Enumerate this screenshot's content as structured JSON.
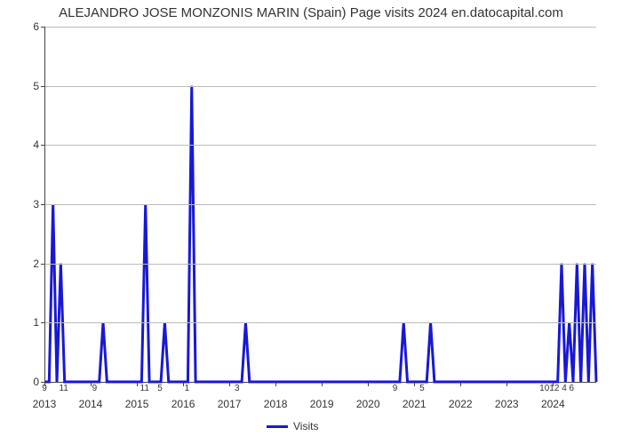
{
  "title": "ALEJANDRO JOSE MONZONIS MARIN (Spain) Page visits 2024 en.datocapital.com",
  "chart": {
    "type": "line",
    "background_color": "#ffffff",
    "grid_color": "#bbbbbb",
    "axis_color": "#444444",
    "text_color": "#333333",
    "title_fontsize": 15,
    "tick_fontsize": 12,
    "datalabel_fontsize": 10,
    "line_color": "#1818d6",
    "line_width": 3,
    "ylim": [
      0,
      6
    ],
    "ytick_step": 1,
    "x_label_step_months": 12,
    "x_start_year": 2013,
    "x_end_year": 2024,
    "legend_label": "Visits",
    "series": [
      {
        "month": 0,
        "value": 0,
        "data_label": "9"
      },
      {
        "month": 1,
        "value": 0
      },
      {
        "month": 2,
        "value": 3
      },
      {
        "month": 3,
        "value": 0
      },
      {
        "month": 4,
        "value": 2
      },
      {
        "month": 5,
        "value": 0,
        "data_label": "11"
      },
      {
        "month": 6,
        "value": 0
      },
      {
        "month": 7,
        "value": 0
      },
      {
        "month": 8,
        "value": 0
      },
      {
        "month": 9,
        "value": 0
      },
      {
        "month": 10,
        "value": 0
      },
      {
        "month": 11,
        "value": 0
      },
      {
        "month": 12,
        "value": 0
      },
      {
        "month": 13,
        "value": 0,
        "data_label": "9"
      },
      {
        "month": 14,
        "value": 0
      },
      {
        "month": 15,
        "value": 1
      },
      {
        "month": 16,
        "value": 0
      },
      {
        "month": 17,
        "value": 0
      },
      {
        "month": 18,
        "value": 0
      },
      {
        "month": 19,
        "value": 0
      },
      {
        "month": 20,
        "value": 0
      },
      {
        "month": 21,
        "value": 0
      },
      {
        "month": 22,
        "value": 0
      },
      {
        "month": 23,
        "value": 0
      },
      {
        "month": 24,
        "value": 0
      },
      {
        "month": 25,
        "value": 0
      },
      {
        "month": 26,
        "value": 3,
        "data_label": "11"
      },
      {
        "month": 27,
        "value": 0
      },
      {
        "month": 28,
        "value": 0
      },
      {
        "month": 29,
        "value": 0
      },
      {
        "month": 30,
        "value": 0,
        "data_label": "5"
      },
      {
        "month": 31,
        "value": 1
      },
      {
        "month": 32,
        "value": 0
      },
      {
        "month": 33,
        "value": 0
      },
      {
        "month": 34,
        "value": 0
      },
      {
        "month": 35,
        "value": 0
      },
      {
        "month": 36,
        "value": 0
      },
      {
        "month": 37,
        "value": 0,
        "data_label": "1"
      },
      {
        "month": 38,
        "value": 5
      },
      {
        "month": 39,
        "value": 0
      },
      {
        "month": 40,
        "value": 0
      },
      {
        "month": 41,
        "value": 0
      },
      {
        "month": 42,
        "value": 0
      },
      {
        "month": 43,
        "value": 0
      },
      {
        "month": 44,
        "value": 0
      },
      {
        "month": 45,
        "value": 0
      },
      {
        "month": 46,
        "value": 0
      },
      {
        "month": 47,
        "value": 0
      },
      {
        "month": 48,
        "value": 0
      },
      {
        "month": 49,
        "value": 0
      },
      {
        "month": 50,
        "value": 0,
        "data_label": "3"
      },
      {
        "month": 51,
        "value": 0
      },
      {
        "month": 52,
        "value": 1
      },
      {
        "month": 53,
        "value": 0
      },
      {
        "month": 54,
        "value": 0
      },
      {
        "month": 55,
        "value": 0
      },
      {
        "month": 56,
        "value": 0
      },
      {
        "month": 57,
        "value": 0
      },
      {
        "month": 58,
        "value": 0
      },
      {
        "month": 59,
        "value": 0
      },
      {
        "month": 60,
        "value": 0
      },
      {
        "month": 61,
        "value": 0
      },
      {
        "month": 62,
        "value": 0
      },
      {
        "month": 63,
        "value": 0
      },
      {
        "month": 64,
        "value": 0
      },
      {
        "month": 65,
        "value": 0
      },
      {
        "month": 66,
        "value": 0
      },
      {
        "month": 67,
        "value": 0
      },
      {
        "month": 68,
        "value": 0
      },
      {
        "month": 69,
        "value": 0
      },
      {
        "month": 70,
        "value": 0
      },
      {
        "month": 71,
        "value": 0
      },
      {
        "month": 72,
        "value": 0
      },
      {
        "month": 73,
        "value": 0
      },
      {
        "month": 74,
        "value": 0
      },
      {
        "month": 75,
        "value": 0
      },
      {
        "month": 76,
        "value": 0
      },
      {
        "month": 77,
        "value": 0
      },
      {
        "month": 78,
        "value": 0
      },
      {
        "month": 79,
        "value": 0
      },
      {
        "month": 80,
        "value": 0
      },
      {
        "month": 81,
        "value": 0
      },
      {
        "month": 82,
        "value": 0
      },
      {
        "month": 83,
        "value": 0
      },
      {
        "month": 84,
        "value": 0
      },
      {
        "month": 85,
        "value": 0
      },
      {
        "month": 86,
        "value": 0
      },
      {
        "month": 87,
        "value": 0
      },
      {
        "month": 88,
        "value": 0
      },
      {
        "month": 89,
        "value": 0
      },
      {
        "month": 90,
        "value": 0
      },
      {
        "month": 91,
        "value": 0,
        "data_label": "9"
      },
      {
        "month": 92,
        "value": 0
      },
      {
        "month": 93,
        "value": 1
      },
      {
        "month": 94,
        "value": 0
      },
      {
        "month": 95,
        "value": 0
      },
      {
        "month": 96,
        "value": 0
      },
      {
        "month": 97,
        "value": 0
      },
      {
        "month": 98,
        "value": 0,
        "data_label": "5"
      },
      {
        "month": 99,
        "value": 0
      },
      {
        "month": 100,
        "value": 1
      },
      {
        "month": 101,
        "value": 0
      },
      {
        "month": 102,
        "value": 0
      },
      {
        "month": 103,
        "value": 0
      },
      {
        "month": 104,
        "value": 0
      },
      {
        "month": 105,
        "value": 0
      },
      {
        "month": 106,
        "value": 0
      },
      {
        "month": 107,
        "value": 0
      },
      {
        "month": 108,
        "value": 0
      },
      {
        "month": 109,
        "value": 0
      },
      {
        "month": 110,
        "value": 0
      },
      {
        "month": 111,
        "value": 0
      },
      {
        "month": 112,
        "value": 0
      },
      {
        "month": 113,
        "value": 0
      },
      {
        "month": 114,
        "value": 0
      },
      {
        "month": 115,
        "value": 0
      },
      {
        "month": 116,
        "value": 0
      },
      {
        "month": 117,
        "value": 0
      },
      {
        "month": 118,
        "value": 0
      },
      {
        "month": 119,
        "value": 0
      },
      {
        "month": 120,
        "value": 0
      },
      {
        "month": 121,
        "value": 0
      },
      {
        "month": 122,
        "value": 0
      },
      {
        "month": 123,
        "value": 0
      },
      {
        "month": 124,
        "value": 0
      },
      {
        "month": 125,
        "value": 0
      },
      {
        "month": 126,
        "value": 0
      },
      {
        "month": 127,
        "value": 0
      },
      {
        "month": 128,
        "value": 0
      },
      {
        "month": 129,
        "value": 0
      },
      {
        "month": 130,
        "value": 0
      },
      {
        "month": 131,
        "value": 0
      },
      {
        "month": 132,
        "value": 0
      },
      {
        "month": 133,
        "value": 0,
        "data_label": "1012 4 6"
      },
      {
        "month": 134,
        "value": 2
      },
      {
        "month": 135,
        "value": 0
      },
      {
        "month": 136,
        "value": 1
      },
      {
        "month": 137,
        "value": 0
      },
      {
        "month": 138,
        "value": 2
      },
      {
        "month": 139,
        "value": 0
      },
      {
        "month": 140,
        "value": 2
      },
      {
        "month": 141,
        "value": 0
      },
      {
        "month": 142,
        "value": 2
      },
      {
        "month": 143,
        "value": 0
      }
    ]
  }
}
